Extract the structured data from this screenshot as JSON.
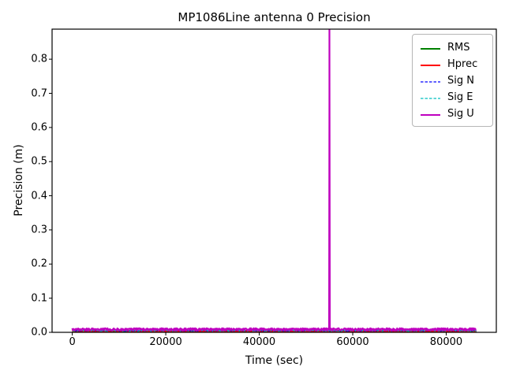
{
  "chart_data": {
    "type": "line",
    "title": "MP1086Line antenna 0 Precision",
    "xlabel": "Time (sec)",
    "ylabel": "Precision (m)",
    "xlim": [
      -4320,
      90720
    ],
    "ylim": [
      0,
      0.888
    ],
    "grid": false,
    "x_data_range": [
      0,
      86400
    ],
    "xticks": {
      "values": [
        0,
        20000,
        40000,
        60000,
        80000
      ],
      "labels": [
        "0",
        "20000",
        "40000",
        "60000",
        "80000"
      ]
    },
    "yticks": {
      "values": [
        0.0,
        0.1,
        0.2,
        0.3,
        0.4,
        0.5,
        0.6,
        0.7,
        0.8
      ],
      "labels": [
        "0.0",
        "0.1",
        "0.2",
        "0.3",
        "0.4",
        "0.5",
        "0.6",
        "0.7",
        "0.8"
      ]
    },
    "legend": {
      "position": "upper right"
    },
    "series": [
      {
        "name": "RMS",
        "color": "#008000",
        "style": "solid",
        "width": 2,
        "base": 0.0028,
        "noise": 0.0014
      },
      {
        "name": "Hprec",
        "color": "#ff0000",
        "style": "solid",
        "width": 2,
        "base": 0.0038,
        "noise": 0.0015
      },
      {
        "name": "Sig N",
        "color": "#0000ff",
        "style": "dashed",
        "width": 1,
        "base": 0.005,
        "noise": 0.002
      },
      {
        "name": "Sig E",
        "color": "#00bfbf",
        "style": "dashed",
        "width": 1.2,
        "base": 0.0055,
        "noise": 0.0026
      },
      {
        "name": "Sig U",
        "color": "#bf00bf",
        "style": "solid",
        "width": 2,
        "base": 0.0088,
        "noise": 0.0034,
        "spike": {
          "t": 55000,
          "value": 0.93
        }
      }
    ]
  }
}
